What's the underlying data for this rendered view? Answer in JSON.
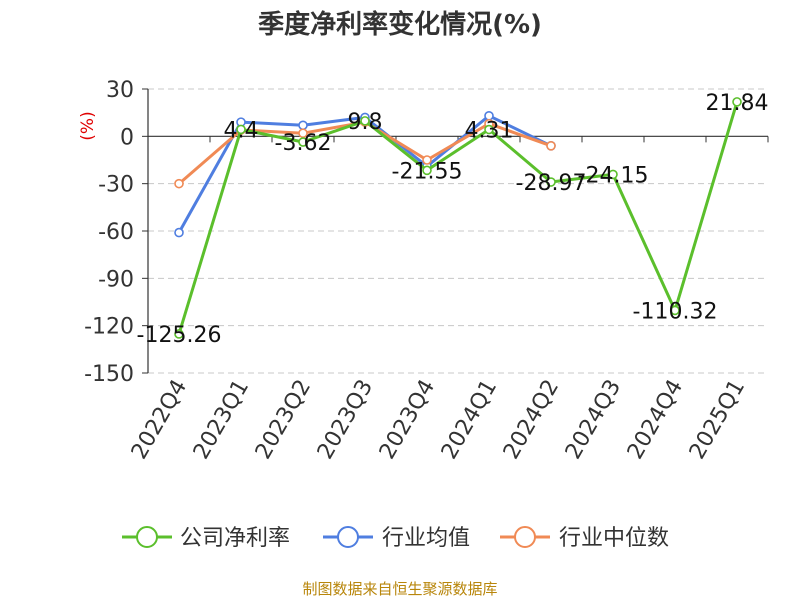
{
  "title": "季度净利率变化情况(%)",
  "source": "制图数据来自恒生聚源数据库",
  "colors": {
    "company": "#5bbf2c",
    "industry_avg": "#4f7ee0",
    "industry_median": "#f08a55",
    "axis_unit": "#e00000",
    "grid": "#c8c8c8",
    "axis": "#333333",
    "source": "#b8860b"
  },
  "chart_data": {
    "type": "line",
    "title": "季度净利率变化情况(%)",
    "xlabel": "",
    "ylabel": "(%)",
    "ylim": [
      -150,
      30
    ],
    "yticks": [
      30,
      0,
      -30,
      -60,
      -90,
      -120,
      -150
    ],
    "grid": true,
    "legend_position": "bottom",
    "categories": [
      "2022Q4",
      "2023Q1",
      "2023Q2",
      "2023Q3",
      "2023Q4",
      "2024Q1",
      "2024Q2",
      "2024Q3",
      "2024Q4",
      "2025Q1"
    ],
    "series": [
      {
        "name": "公司净利率",
        "color": "#5bbf2c",
        "values": [
          -125.26,
          4.4,
          -3.62,
          9.8,
          -21.55,
          4.31,
          -28.97,
          -24.15,
          -110.32,
          21.84
        ],
        "labels": [
          "-125.26",
          "4.4",
          "-3.62",
          "9.8",
          "-21.55",
          "4.31",
          "-28.97",
          "-24.15",
          "-110.32",
          "21.84"
        ]
      },
      {
        "name": "行业均值",
        "color": "#4f7ee0",
        "values": [
          -61,
          9,
          7,
          12,
          -19,
          13,
          -6,
          null,
          null,
          null
        ]
      },
      {
        "name": "行业中位数",
        "color": "#f08a55",
        "values": [
          -30,
          4,
          2,
          9,
          -15,
          8,
          -6,
          null,
          null,
          null
        ]
      }
    ]
  }
}
